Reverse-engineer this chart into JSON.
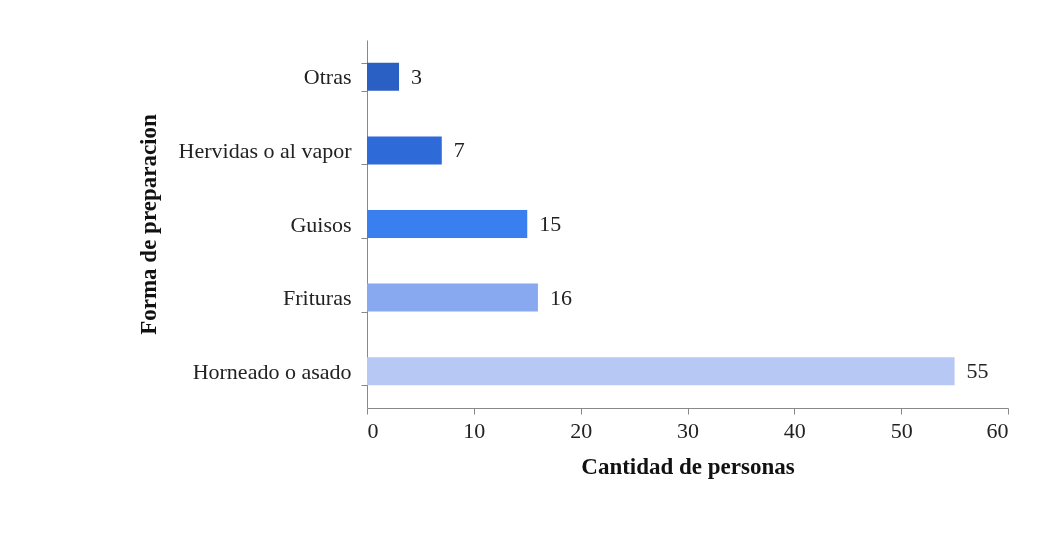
{
  "chart_data": {
    "type": "bar",
    "orientation": "horizontal",
    "xlabel": "Cantidad de personas",
    "ylabel": "Forma de preparacion",
    "categories": [
      "Otras",
      "Hervidas o al vapor",
      "Guisos",
      "Frituras",
      "Horneado o asado"
    ],
    "values": [
      3,
      7,
      15,
      16,
      55
    ],
    "colors": [
      "#2a5fc4",
      "#2e6bd8",
      "#3a7ff0",
      "#88a8f0",
      "#b8c8f5"
    ],
    "xlim": [
      0,
      60
    ],
    "xticks": [
      0,
      10,
      20,
      30,
      40,
      50,
      60
    ],
    "data_labels": true,
    "grid": false
  }
}
